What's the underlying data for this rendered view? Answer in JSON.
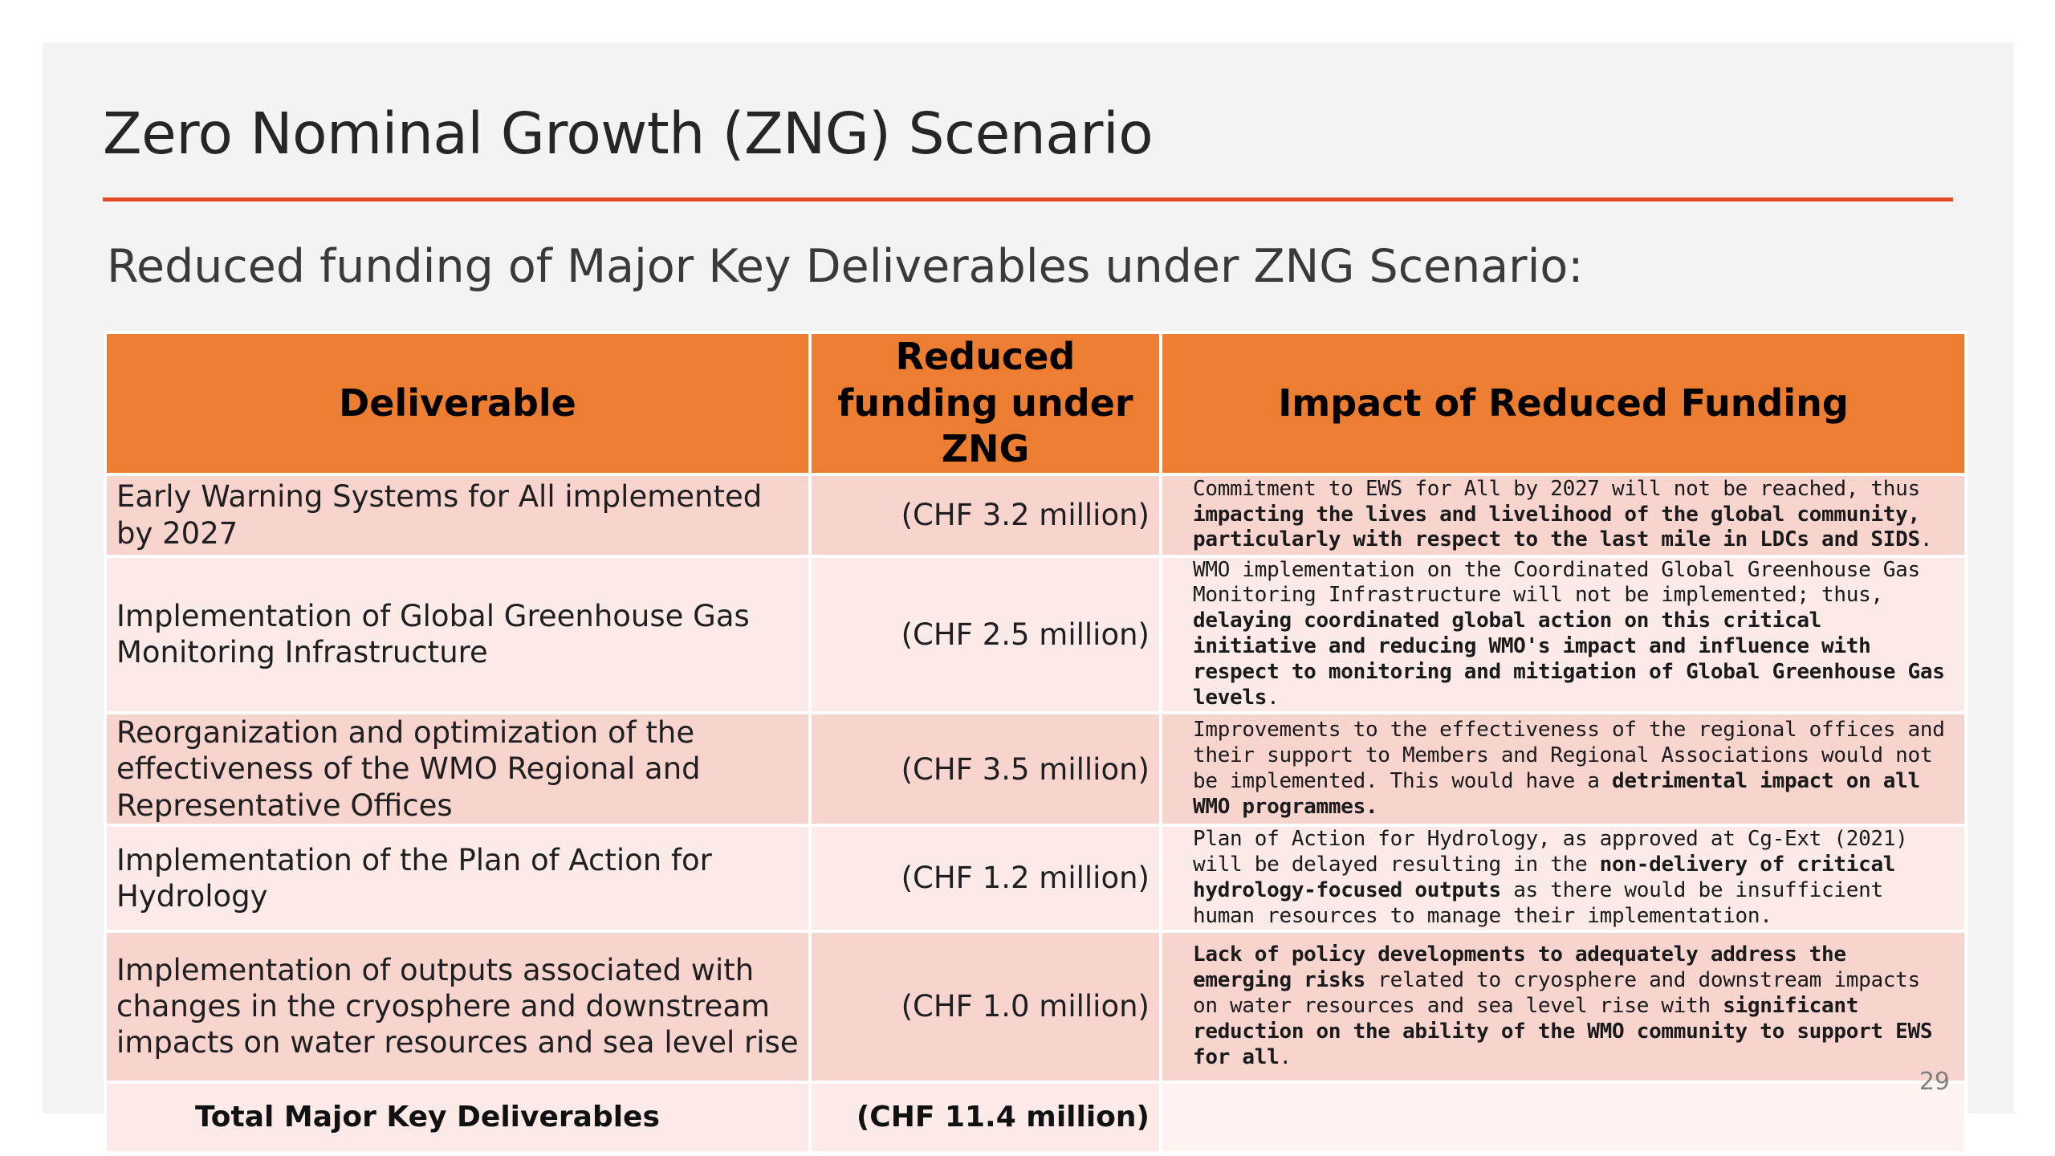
{
  "title": "Zero Nominal Growth (ZNG) Scenario",
  "subtitle": "Reduced funding of Major Key Deliverables under ZNG Scenario:",
  "colors": {
    "accent_rule": "#e34a2a",
    "header_bg": "#ed7d31",
    "row_dark": "#f8d4cf",
    "row_light": "#fbeae7"
  },
  "table": {
    "headers": [
      "Deliverable",
      "Reduced funding under ZNG",
      "Impact of Reduced Funding"
    ],
    "rows": [
      {
        "deliverable": "Early Warning Systems for All implemented by 2027",
        "funding": "(CHF 3.2 million)",
        "impact": [
          {
            "t": "Commitment to EWS for All by 2027 will not be reached, thus ",
            "b": false
          },
          {
            "t": "impacting the lives and livelihood of the global community, particularly with respect to the last mile in LDCs and SIDS",
            "b": true
          },
          {
            "t": ".",
            "b": false
          }
        ]
      },
      {
        "deliverable": "Implementation of Global Greenhouse Gas Monitoring Infrastructure",
        "funding": "(CHF 2.5 million)",
        "impact": [
          {
            "t": "WMO implementation on the Coordinated Global Greenhouse Gas Monitoring Infrastructure will not be implemented; thus, ",
            "b": false
          },
          {
            "t": "delaying coordinated global action on this critical initiative and reducing WMO's impact and influence with respect to monitoring and mitigation of Global Greenhouse Gas levels",
            "b": true
          },
          {
            "t": ".",
            "b": false
          }
        ]
      },
      {
        "deliverable": "Reorganization and optimization of the effectiveness of the WMO Regional and Representative Offices",
        "funding": "(CHF 3.5 million)",
        "impact": [
          {
            "t": "Improvements to the effectiveness of the regional offices and their support to Members and Regional Associations would not be implemented. This would have a ",
            "b": false
          },
          {
            "t": "detrimental impact on all WMO programmes.",
            "b": true
          }
        ]
      },
      {
        "deliverable": "Implementation of the Plan of Action for Hydrology",
        "funding": "(CHF 1.2 million)",
        "impact": [
          {
            "t": "Plan of Action for Hydrology, as approved at Cg-Ext (2021) will be delayed resulting in the ",
            "b": false
          },
          {
            "t": "non-delivery of critical hydrology-focused outputs",
            "b": true
          },
          {
            "t": " as there would be insufficient human resources to manage their implementation.",
            "b": false
          }
        ]
      },
      {
        "deliverable": "Implementation of outputs associated with changes in the cryosphere and downstream impacts on water resources and sea level rise",
        "funding": "(CHF 1.0 million)",
        "impact": [
          {
            "t": "Lack of policy developments to adequately address the emerging risks",
            "b": true
          },
          {
            "t": " related to cryosphere and downstream impacts on water resources and sea level rise with ",
            "b": false
          },
          {
            "t": "significant reduction on the ability of the WMO community to support EWS for all",
            "b": true
          },
          {
            "t": ".",
            "b": false
          }
        ]
      }
    ],
    "total": {
      "label": "Total Major Key Deliverables",
      "funding": "(CHF 11.4 million)"
    }
  },
  "page_number": "29"
}
